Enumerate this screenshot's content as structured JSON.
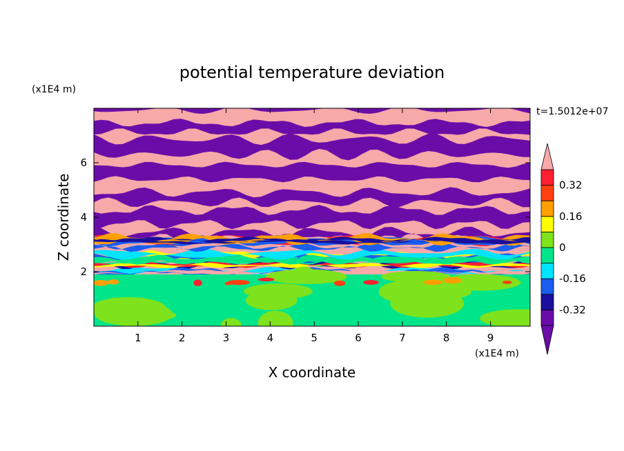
{
  "chart_data": {
    "type": "heatmap",
    "title": "potential temperature deviation",
    "time_label": "t=1.5012e+07",
    "xlabel": "X coordinate",
    "ylabel": "Z coordinate",
    "x_unit_label": "(x1E4 m)",
    "y_unit_label": "(x1E4 m)",
    "xlim": [
      0,
      9.9
    ],
    "ylim": [
      0,
      8
    ],
    "x_ticks": [
      1,
      2,
      3,
      4,
      5,
      6,
      7,
      8,
      9
    ],
    "y_ticks": [
      2,
      4,
      6
    ],
    "colorbar": {
      "levels": [
        -0.4,
        -0.32,
        -0.24,
        -0.16,
        -0.08,
        0,
        0.08,
        0.16,
        0.24,
        0.32,
        0.4
      ],
      "labels": [
        "0.32",
        "0.16",
        "0",
        "-0.16",
        "-0.32"
      ],
      "label_values": [
        0.32,
        0.16,
        0,
        -0.16,
        -0.32
      ],
      "colors": [
        "#6a0da8",
        "#1b0f9c",
        "#1a5ef0",
        "#00e4ff",
        "#00e58a",
        "#7ee21c",
        "#ffff00",
        "#ffa000",
        "#ff4010",
        "#ff2030",
        "#f7a8a8"
      ],
      "extend": "both"
    },
    "regions": [
      {
        "zmin": 0,
        "zmax": 1.9,
        "description": "green and light-green values near 0",
        "values": [
          0,
          0.08
        ]
      },
      {
        "zmin": 1.9,
        "zmax": 3.2,
        "description": "mixed band of all colors",
        "values": [
          -0.4,
          0.4
        ]
      },
      {
        "zmin": 3.2,
        "zmax": 8,
        "description": "alternating purple and pink layers",
        "values": [
          -0.4,
          0.4
        ]
      }
    ]
  }
}
